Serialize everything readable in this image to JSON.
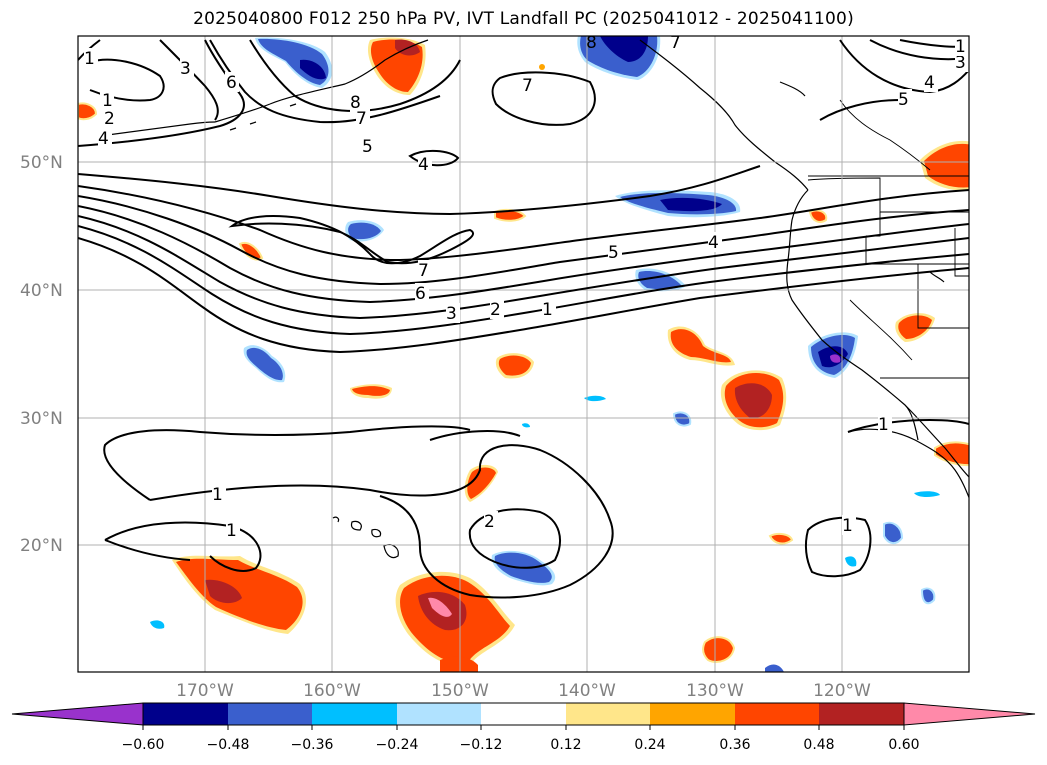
{
  "title": "2025040800 F012 250 hPa PV, IVT Landfall PC (2025041012 - 2025041100)",
  "map": {
    "lat_labels": [
      "50°N",
      "40°N",
      "30°N",
      "20°N"
    ],
    "lon_labels": [
      "170°W",
      "160°W",
      "150°W",
      "140°W",
      "130°W",
      "120°W"
    ],
    "contour_labels": [
      "1",
      "2",
      "4",
      "3",
      "6",
      "8",
      "7",
      "5",
      "4",
      "7",
      "7",
      "6",
      "3",
      "2",
      "1",
      "5",
      "4",
      "5",
      "4",
      "3",
      "1",
      "1",
      "2",
      "1",
      "1",
      "8"
    ]
  },
  "colorbar": {
    "ticks": [
      "−0.60",
      "−0.48",
      "−0.36",
      "−0.24",
      "−0.12",
      "0.12",
      "0.24",
      "0.36",
      "0.48",
      "0.60"
    ],
    "colors": [
      "#9932cc",
      "#00008b",
      "#3a5fcd",
      "#00bfff",
      "#b0e2ff",
      "#ffffff",
      "#ffe68a",
      "#ffa500",
      "#ff4500",
      "#b22222",
      "#ff89a9"
    ]
  },
  "colors": {
    "blue_dark": "#00008b",
    "blue_mid": "#3a5fcd",
    "blue_light": "#00bfff",
    "blue_pale": "#b0e2ff",
    "yellow": "#ffe68a",
    "orange": "#ffa500",
    "orange_red": "#ff4500",
    "red": "#b22222",
    "pink": "#ff89a9",
    "purple": "#9932cc",
    "grid": "#b0b0b0",
    "label_gray": "#808080"
  }
}
